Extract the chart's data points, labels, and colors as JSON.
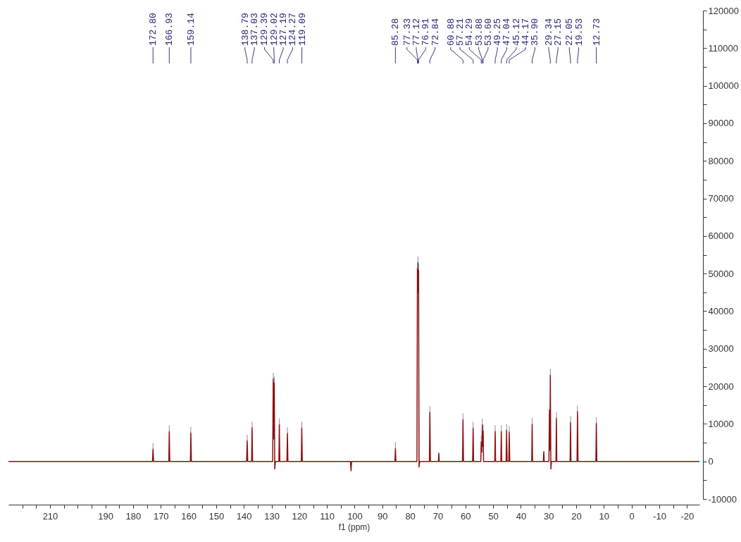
{
  "chart_data": {
    "type": "line",
    "xlabel": "f1 (ppm)",
    "color": "#8b1010",
    "x": [
      225,
      173.0,
      172.8,
      172.6,
      167.1,
      166.93,
      166.75,
      159.3,
      159.14,
      158.95,
      139.0,
      138.79,
      138.6,
      137.2,
      137.03,
      136.85,
      129.6,
      129.39,
      129.2,
      129.02,
      128.85,
      128.6,
      127.35,
      127.19,
      127.0,
      124.45,
      124.27,
      124.1,
      119.25,
      119.09,
      118.9,
      101.5,
      101.3,
      101.1,
      85.45,
      85.28,
      85.1,
      77.5,
      77.33,
      77.22,
      77.12,
      77.01,
      76.91,
      76.75,
      76.5,
      73.0,
      72.84,
      72.65,
      69.75,
      69.6,
      69.45,
      61.05,
      60.88,
      60.7,
      57.4,
      57.21,
      57.05,
      54.45,
      54.29,
      54.1,
      53.88,
      53.74,
      53.6,
      53.45,
      49.4,
      49.25,
      49.1,
      47.2,
      47.04,
      46.9,
      45.3,
      45.12,
      44.95,
      44.35,
      44.17,
      44.0,
      36.05,
      35.9,
      35.75,
      31.85,
      31.7,
      31.55,
      29.85,
      29.66,
      29.5,
      29.34,
      29.15,
      28.95,
      27.3,
      27.15,
      27.0,
      22.2,
      22.05,
      21.9,
      19.7,
      19.53,
      19.35,
      12.9,
      12.73,
      12.55,
      -24.5
    ],
    "values": [
      0,
      0,
      3300,
      0,
      0,
      8000,
      0,
      0,
      7600,
      0,
      0,
      5500,
      0,
      0,
      9000,
      0,
      0,
      22000,
      6000,
      21000,
      -2000,
      0,
      0,
      9900,
      0,
      0,
      7500,
      0,
      0,
      9000,
      0,
      0,
      -2500,
      0,
      0,
      3500,
      0,
      0,
      51500,
      45000,
      53000,
      45000,
      51000,
      -1500,
      0,
      0,
      13100,
      0,
      0,
      2200,
      0,
      0,
      11200,
      0,
      0,
      8900,
      0,
      0,
      5300,
      2500,
      9800,
      4000,
      8200,
      0,
      0,
      8000,
      0,
      0,
      8000,
      0,
      0,
      8400,
      0,
      0,
      7800,
      0,
      0,
      10000,
      0,
      0,
      2600,
      0,
      0,
      13700,
      3000,
      23000,
      -2000,
      0,
      0,
      11500,
      0,
      0,
      10400,
      0,
      0,
      13300,
      0,
      0,
      10200,
      0,
      0
    ],
    "xlim": [
      225,
      -24.5
    ],
    "xticks": [
      {
        "value": 220,
        "label": null
      },
      {
        "value": 215,
        "label": null
      },
      210,
      {
        "value": 205,
        "label": null
      },
      {
        "value": 200,
        "label": null
      },
      {
        "value": 195,
        "label": null
      },
      190,
      {
        "value": 185,
        "label": null
      },
      180,
      {
        "value": 175,
        "label": null
      },
      170,
      {
        "value": 165,
        "label": null
      },
      160,
      {
        "value": 155,
        "label": null
      },
      150,
      {
        "value": 145,
        "label": null
      },
      140,
      {
        "value": 135,
        "label": null
      },
      130,
      {
        "value": 125,
        "label": null
      },
      120,
      {
        "value": 115,
        "label": null
      },
      110,
      {
        "value": 105,
        "label": null
      },
      100,
      {
        "value": 95,
        "label": null
      },
      90,
      {
        "value": 85,
        "label": null
      },
      80,
      {
        "value": 75,
        "label": null
      },
      70,
      {
        "value": 65,
        "label": null
      },
      60,
      {
        "value": 55,
        "label": null
      },
      50,
      {
        "value": 45,
        "label": null
      },
      40,
      {
        "value": 35,
        "label": null
      },
      30,
      {
        "value": 25,
        "label": null
      },
      20,
      {
        "value": 15,
        "label": null
      },
      10,
      {
        "value": 5,
        "label": null
      },
      0,
      {
        "value": -5,
        "label": null
      },
      -10,
      {
        "value": -15,
        "label": null
      },
      -20
    ],
    "ylim": [
      -10000,
      120000
    ],
    "yticks": [
      -10000,
      {
        "value": -5000,
        "label": null
      },
      0,
      {
        "value": 5000,
        "label": null
      },
      10000,
      {
        "value": 15000,
        "label": null
      },
      20000,
      {
        "value": 25000,
        "label": null
      },
      30000,
      {
        "value": 35000,
        "label": null
      },
      40000,
      {
        "value": 45000,
        "label": null
      },
      50000,
      {
        "value": 55000,
        "label": null
      },
      60000,
      {
        "value": 65000,
        "label": null
      },
      70000,
      {
        "value": 75000,
        "label": null
      },
      80000,
      {
        "value": 85000,
        "label": null
      },
      90000,
      {
        "value": 95000,
        "label": null
      },
      100000,
      {
        "value": 105000,
        "label": null
      },
      110000,
      {
        "value": 115000,
        "label": null
      },
      120000
    ],
    "annotations": [
      {
        "text": "172.80",
        "x": 172.8
      },
      {
        "text": "166.93",
        "x": 166.93
      },
      {
        "text": "159.14",
        "x": 159.14
      },
      {
        "text": "138.79",
        "x": 138.79
      },
      {
        "text": "137.03",
        "x": 137.03
      },
      {
        "text": "129.39",
        "x": 129.39
      },
      {
        "text": "129.02",
        "x": 129.02
      },
      {
        "text": "127.19",
        "x": 127.19
      },
      {
        "text": "124.27",
        "x": 124.27
      },
      {
        "text": "119.09",
        "x": 119.09
      },
      {
        "text": "85.28",
        "x": 85.28
      },
      {
        "text": "77.33",
        "x": 77.33
      },
      {
        "text": "77.12",
        "x": 77.12
      },
      {
        "text": "76.91",
        "x": 76.91
      },
      {
        "text": "72.84",
        "x": 72.84
      },
      {
        "text": "60.88",
        "x": 60.88
      },
      {
        "text": "57.21",
        "x": 57.21
      },
      {
        "text": "54.29",
        "x": 54.29
      },
      {
        "text": "53.88",
        "x": 53.88
      },
      {
        "text": "53.60",
        "x": 53.6
      },
      {
        "text": "49.25",
        "x": 49.25
      },
      {
        "text": "47.04",
        "x": 47.04
      },
      {
        "text": "45.12",
        "x": 45.12
      },
      {
        "text": "44.17",
        "x": 44.17
      },
      {
        "text": "35.90",
        "x": 35.9
      },
      {
        "text": "29.34",
        "x": 29.34
      },
      {
        "text": "27.15",
        "x": 27.15
      },
      {
        "text": "22.05",
        "x": 22.05
      },
      {
        "text": "19.53",
        "x": 19.53
      },
      {
        "text": "12.73",
        "x": 12.73
      }
    ]
  }
}
